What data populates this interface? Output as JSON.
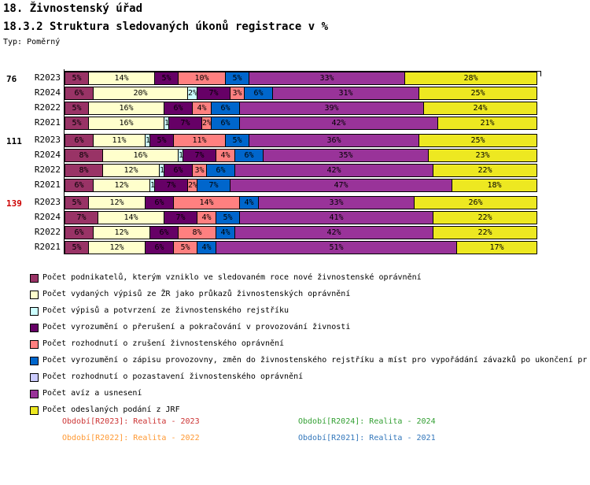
{
  "header": {
    "title": "18. Živnostenský úřad",
    "subtitle": "18.3.2 Struktura sledovaných úkonů registrace v %",
    "type_label": "Typ: Poměrný"
  },
  "chart_data": {
    "type": "bar",
    "stacked": true,
    "orientation": "horizontal",
    "unit": "%",
    "xlim": [
      0,
      100
    ],
    "series": [
      {
        "name": "Počet podnikatelů, kterým vzniklo ve sledovaném roce nové živnostenské oprávnění",
        "color": "#993366"
      },
      {
        "name": "Počet vydaných výpisů ze ŽR jako průkazů živnostenských oprávnění",
        "color": "#FFFFCC"
      },
      {
        "name": "Počet výpisů a potvrzení ze živnostenského rejstříku",
        "color": "#CCFFFF"
      },
      {
        "name": "Počet vyrozumění o přerušení a pokračování v provozování živnosti",
        "color": "#660066"
      },
      {
        "name": "Počet rozhodnutí o zrušení živnostenského oprávnění",
        "color": "#FF8080"
      },
      {
        "name": "Počet vyrozumění o zápisu provozovny, změn do živnostenského rejstříku a míst pro vypořádání závazků po ukončení pr",
        "color": "#0066CC"
      },
      {
        "name": "Počet rozhodnutí o pozastavení živnostenského oprávnění",
        "color": "#CCCCFF"
      },
      {
        "name": "Počet avíz a usnesení",
        "color": "#993399"
      },
      {
        "name": "Počet odeslaných podání z JRF",
        "color": "#EDE821"
      }
    ],
    "groups": [
      {
        "label": "76",
        "label_color": "#000000",
        "rows": [
          {
            "label": "R2023",
            "segments": [
              [
                0,
                5
              ],
              [
                1,
                14
              ],
              [
                3,
                5
              ],
              [
                4,
                10
              ],
              [
                5,
                5
              ],
              [
                7,
                33
              ],
              [
                8,
                28
              ]
            ]
          },
          {
            "label": "R2024",
            "segments": [
              [
                0,
                6
              ],
              [
                1,
                20
              ],
              [
                2,
                2
              ],
              [
                3,
                7
              ],
              [
                4,
                3
              ],
              [
                5,
                6
              ],
              [
                7,
                31
              ],
              [
                8,
                25
              ]
            ]
          },
          {
            "label": "R2022",
            "segments": [
              [
                0,
                5
              ],
              [
                1,
                16
              ],
              [
                3,
                6
              ],
              [
                4,
                4
              ],
              [
                5,
                6
              ],
              [
                7,
                39
              ],
              [
                8,
                24
              ]
            ]
          },
          {
            "label": "R2021",
            "segments": [
              [
                0,
                5
              ],
              [
                1,
                16
              ],
              [
                2,
                1
              ],
              [
                3,
                7
              ],
              [
                4,
                2
              ],
              [
                5,
                6
              ],
              [
                7,
                42
              ],
              [
                8,
                21
              ]
            ]
          }
        ]
      },
      {
        "label": "111",
        "label_color": "#000000",
        "rows": [
          {
            "label": "R2023",
            "segments": [
              [
                0,
                6
              ],
              [
                1,
                11
              ],
              [
                2,
                1
              ],
              [
                3,
                5
              ],
              [
                4,
                11
              ],
              [
                5,
                5
              ],
              [
                7,
                36
              ],
              [
                8,
                25
              ]
            ]
          },
          {
            "label": "R2024",
            "segments": [
              [
                0,
                8
              ],
              [
                1,
                16
              ],
              [
                2,
                1
              ],
              [
                3,
                7
              ],
              [
                4,
                4
              ],
              [
                5,
                6
              ],
              [
                7,
                35
              ],
              [
                8,
                23
              ]
            ]
          },
          {
            "label": "R2022",
            "segments": [
              [
                0,
                8
              ],
              [
                1,
                12
              ],
              [
                2,
                1
              ],
              [
                3,
                6
              ],
              [
                4,
                3
              ],
              [
                5,
                6
              ],
              [
                7,
                42
              ],
              [
                8,
                22
              ]
            ]
          },
          {
            "label": "R2021",
            "segments": [
              [
                0,
                6
              ],
              [
                1,
                12
              ],
              [
                2,
                1
              ],
              [
                3,
                7
              ],
              [
                4,
                2
              ],
              [
                5,
                7
              ],
              [
                7,
                47
              ],
              [
                8,
                18
              ]
            ]
          }
        ]
      },
      {
        "label": "139",
        "label_color": "#CC0000",
        "rows": [
          {
            "label": "R2023",
            "segments": [
              [
                0,
                5
              ],
              [
                1,
                12
              ],
              [
                3,
                6
              ],
              [
                4,
                14
              ],
              [
                5,
                4
              ],
              [
                7,
                33
              ],
              [
                8,
                26
              ]
            ]
          },
          {
            "label": "R2024",
            "segments": [
              [
                0,
                7
              ],
              [
                1,
                14
              ],
              [
                3,
                7
              ],
              [
                4,
                4
              ],
              [
                5,
                5
              ],
              [
                7,
                41
              ],
              [
                8,
                22
              ]
            ]
          },
          {
            "label": "R2022",
            "segments": [
              [
                0,
                6
              ],
              [
                1,
                12
              ],
              [
                3,
                6
              ],
              [
                4,
                8
              ],
              [
                5,
                4
              ],
              [
                7,
                42
              ],
              [
                8,
                22
              ]
            ]
          },
          {
            "label": "R2021",
            "segments": [
              [
                0,
                5
              ],
              [
                1,
                12
              ],
              [
                3,
                6
              ],
              [
                4,
                5
              ],
              [
                5,
                4
              ],
              [
                7,
                51
              ],
              [
                8,
                17
              ]
            ]
          }
        ]
      }
    ]
  },
  "footer": {
    "notes": [
      {
        "text": "Období[R2023]: Realita - 2023",
        "color": "#CC3333"
      },
      {
        "text": "Období[R2024]: Realita - 2024",
        "color": "#33A033"
      },
      {
        "text": "Období[R2022]: Realita - 2022",
        "color": "#FF9933"
      },
      {
        "text": "Období[R2021]: Realita - 2021",
        "color": "#3377BB"
      }
    ]
  }
}
